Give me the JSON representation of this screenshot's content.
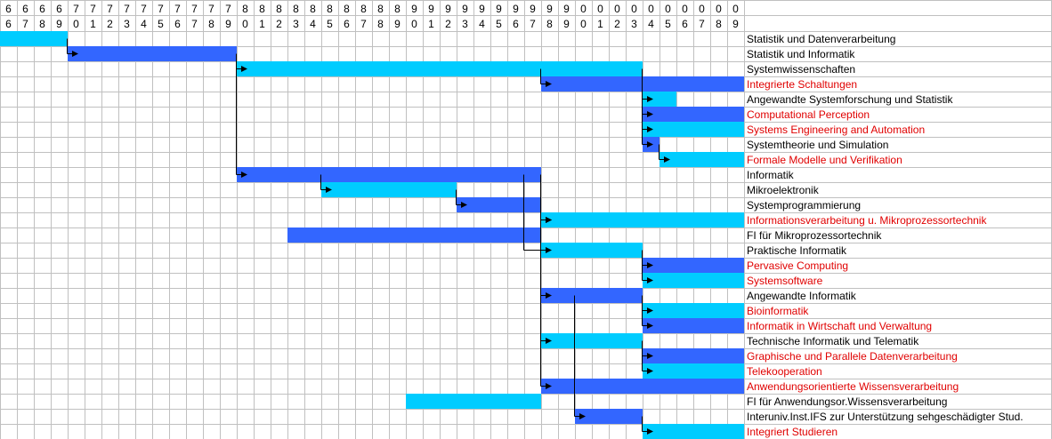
{
  "chart_data": {
    "type": "gantt",
    "years": [
      "66",
      "67",
      "68",
      "69",
      "70",
      "71",
      "72",
      "73",
      "74",
      "75",
      "76",
      "77",
      "78",
      "79",
      "80",
      "81",
      "82",
      "83",
      "84",
      "85",
      "86",
      "87",
      "88",
      "89",
      "90",
      "91",
      "92",
      "93",
      "94",
      "95",
      "96",
      "97",
      "98",
      "99",
      "00",
      "01",
      "02",
      "03",
      "04",
      "05",
      "06",
      "07",
      "08",
      "09"
    ],
    "year_tens": [
      "6",
      "6",
      "6",
      "6",
      "7",
      "7",
      "7",
      "7",
      "7",
      "7",
      "7",
      "7",
      "7",
      "7",
      "8",
      "8",
      "8",
      "8",
      "8",
      "8",
      "8",
      "8",
      "8",
      "8",
      "9",
      "9",
      "9",
      "9",
      "9",
      "9",
      "9",
      "9",
      "9",
      "9",
      "0",
      "0",
      "0",
      "0",
      "0",
      "0",
      "0",
      "0",
      "0",
      "0"
    ],
    "year_units": [
      "6",
      "7",
      "8",
      "9",
      "0",
      "1",
      "2",
      "3",
      "4",
      "5",
      "6",
      "7",
      "8",
      "9",
      "0",
      "1",
      "2",
      "3",
      "4",
      "5",
      "6",
      "7",
      "8",
      "9",
      "0",
      "1",
      "2",
      "3",
      "4",
      "5",
      "6",
      "7",
      "8",
      "9",
      "0",
      "1",
      "2",
      "3",
      "4",
      "5",
      "6",
      "7",
      "8",
      "9"
    ],
    "colors": {
      "light": "#00CCFF",
      "dark": "#3366FF",
      "existing_text": "#000000",
      "current_text": "#E00000",
      "grid": "#C0C0C0"
    },
    "rows": [
      {
        "label": "Statistik und Datenverarbeitung",
        "start": 1966,
        "end": 1969,
        "color": "light",
        "current": false
      },
      {
        "label": "Statistik und Informatik",
        "start": 1970,
        "end": 1979,
        "color": "dark",
        "current": false
      },
      {
        "label": "Systemwissenschaften",
        "start": 1980,
        "end": 2003,
        "color": "light",
        "current": false
      },
      {
        "label": "Integrierte Schaltungen",
        "start": 1998,
        "end": 2009,
        "color": "dark",
        "current": true
      },
      {
        "label": "Angewandte Systemforschung und Statistik",
        "start": 2004,
        "end": 2005,
        "color": "light",
        "current": false
      },
      {
        "label": "Computational Perception",
        "start": 2004,
        "end": 2009,
        "color": "dark",
        "current": true
      },
      {
        "label": "Systems Engineering and Automation",
        "start": 2004,
        "end": 2009,
        "color": "light",
        "current": true
      },
      {
        "label": "Systemtheorie und Simulation",
        "start": 2004,
        "end": 2004,
        "color": "dark",
        "current": false
      },
      {
        "label": "Formale Modelle und Verifikation",
        "start": 2005,
        "end": 2009,
        "color": "light",
        "current": true
      },
      {
        "label": "Informatik",
        "start": 1980,
        "end": 1997,
        "color": "dark",
        "current": false
      },
      {
        "label": "Mikroelektronik",
        "start": 1985,
        "end": 1992,
        "color": "light",
        "current": false
      },
      {
        "label": "Systemprogrammierung",
        "start": 1993,
        "end": 1997,
        "color": "dark",
        "current": false
      },
      {
        "label": "Informationsverarbeitung u. Mikroprozessortechnik",
        "start": 1998,
        "end": 2009,
        "color": "light",
        "current": true
      },
      {
        "label": "FI für Mikroprozessortechnik",
        "start": 1983,
        "end": 1997,
        "color": "dark",
        "current": false
      },
      {
        "label": "Praktische Informatik",
        "start": 1998,
        "end": 2003,
        "color": "light",
        "current": false
      },
      {
        "label": "Pervasive Computing",
        "start": 2004,
        "end": 2009,
        "color": "dark",
        "current": true
      },
      {
        "label": "Systemsoftware",
        "start": 2004,
        "end": 2009,
        "color": "light",
        "current": true
      },
      {
        "label": "Angewandte Informatik",
        "start": 1998,
        "end": 2003,
        "color": "dark",
        "current": false
      },
      {
        "label": "Bioinformatik",
        "start": 2004,
        "end": 2009,
        "color": "light",
        "current": true
      },
      {
        "label": "Informatik in Wirtschaft und Verwaltung",
        "start": 2004,
        "end": 2009,
        "color": "dark",
        "current": true
      },
      {
        "label": "Technische Informatik und Telematik",
        "start": 1998,
        "end": 2003,
        "color": "light",
        "current": false
      },
      {
        "label": "Graphische und Parallele Datenverarbeitung",
        "start": 2004,
        "end": 2009,
        "color": "dark",
        "current": true
      },
      {
        "label": "Telekooperation",
        "start": 2004,
        "end": 2009,
        "color": "light",
        "current": true
      },
      {
        "label": "Anwendungsorientierte Wissensverarbeitung",
        "start": 1998,
        "end": 2009,
        "color": "dark",
        "current": true
      },
      {
        "label": "FI für Anwendungsor.Wissensverarbeitung",
        "start": 1990,
        "end": 1997,
        "color": "light",
        "current": false
      },
      {
        "label": "Interuniv.Inst.IFS zur Unterstützung sehgeschädigter Stud.",
        "start": 2000,
        "end": 2003,
        "color": "dark",
        "current": false
      },
      {
        "label": "Integriert Studieren",
        "start": 2004,
        "end": 2009,
        "color": "light",
        "current": true
      }
    ],
    "links": [
      {
        "year": 1969,
        "from": 0,
        "to": [
          1
        ]
      },
      {
        "year": 1979,
        "from": 1,
        "to": [
          2,
          9
        ]
      },
      {
        "year": 1997,
        "from": 2,
        "to": [
          3
        ]
      },
      {
        "year": 2003,
        "from": 2,
        "to": [
          4,
          5,
          6,
          7
        ]
      },
      {
        "year": 2004,
        "from": 7,
        "to": [
          8
        ]
      },
      {
        "year": 1984,
        "from": 9,
        "to": [
          10
        ]
      },
      {
        "year": 1992,
        "from": 10,
        "to": [
          11
        ]
      },
      {
        "year": 1996,
        "from": 9,
        "to": [
          14
        ]
      },
      {
        "year": 1997,
        "from": 9,
        "to": [
          12,
          23
        ]
      },
      {
        "year": 1997,
        "from": 11,
        "to": [
          12
        ]
      },
      {
        "year": 1997,
        "from": 13,
        "to": [
          12
        ]
      },
      {
        "year": 2003,
        "from": 14,
        "to": [
          15,
          16
        ]
      },
      {
        "year": 1997,
        "from": 9,
        "to": [
          17,
          20
        ]
      },
      {
        "year": 2003,
        "from": 17,
        "to": [
          18,
          19
        ]
      },
      {
        "year": 2003,
        "from": 20,
        "to": [
          21,
          22
        ]
      },
      {
        "year": 1999,
        "from": 17,
        "to": [
          25
        ]
      },
      {
        "year": 2003,
        "from": 25,
        "to": [
          26
        ]
      }
    ]
  }
}
